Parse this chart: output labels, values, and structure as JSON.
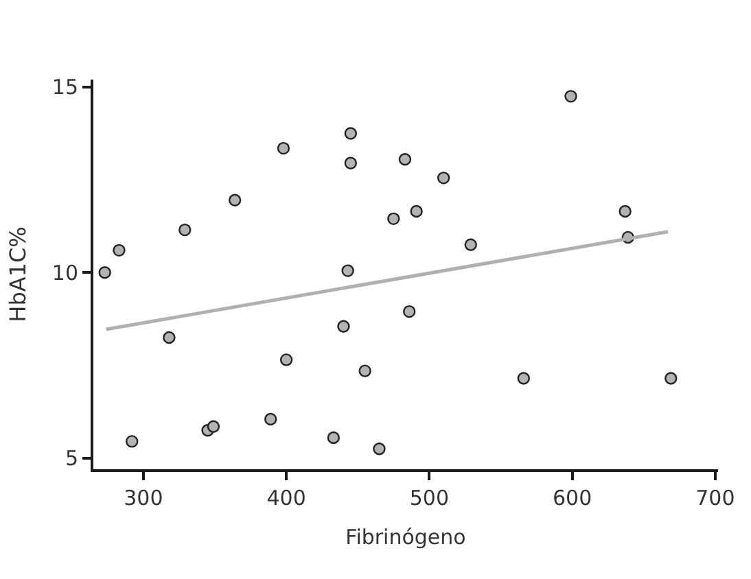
{
  "chart_data": {
    "type": "scatter",
    "xlabel": "Fibrinógeno",
    "ylabel": "HbA1C%",
    "xlim": [
      265,
      702
    ],
    "xticks": [
      300,
      400,
      500,
      600,
      700
    ],
    "ylim": [
      4.7,
      15.2
    ],
    "yticks": [
      5,
      10,
      15
    ],
    "grid": false,
    "marker": "circle",
    "series": [
      {
        "color": "#b3b3b3",
        "x": [
          273,
          283,
          292,
          318,
          329,
          345,
          349,
          364,
          389,
          398,
          400,
          433,
          440,
          443,
          445,
          445,
          455,
          465,
          475,
          483,
          486,
          491,
          510,
          529,
          566,
          599,
          637,
          639,
          669
        ],
        "values": [
          10.0,
          10.6,
          5.45,
          8.25,
          11.15,
          5.75,
          5.85,
          11.95,
          6.05,
          13.35,
          7.65,
          5.55,
          8.55,
          10.05,
          13.75,
          12.95,
          7.35,
          5.25,
          11.45,
          13.05,
          8.95,
          11.65,
          12.55,
          10.75,
          7.15,
          14.75,
          11.65,
          10.95,
          7.15
        ]
      },
      {
        "type": "line",
        "color": "#b0b0b0",
        "marker": "none",
        "x": [
          274,
          667
        ],
        "values": [
          8.47,
          11.1
        ]
      }
    ]
  }
}
